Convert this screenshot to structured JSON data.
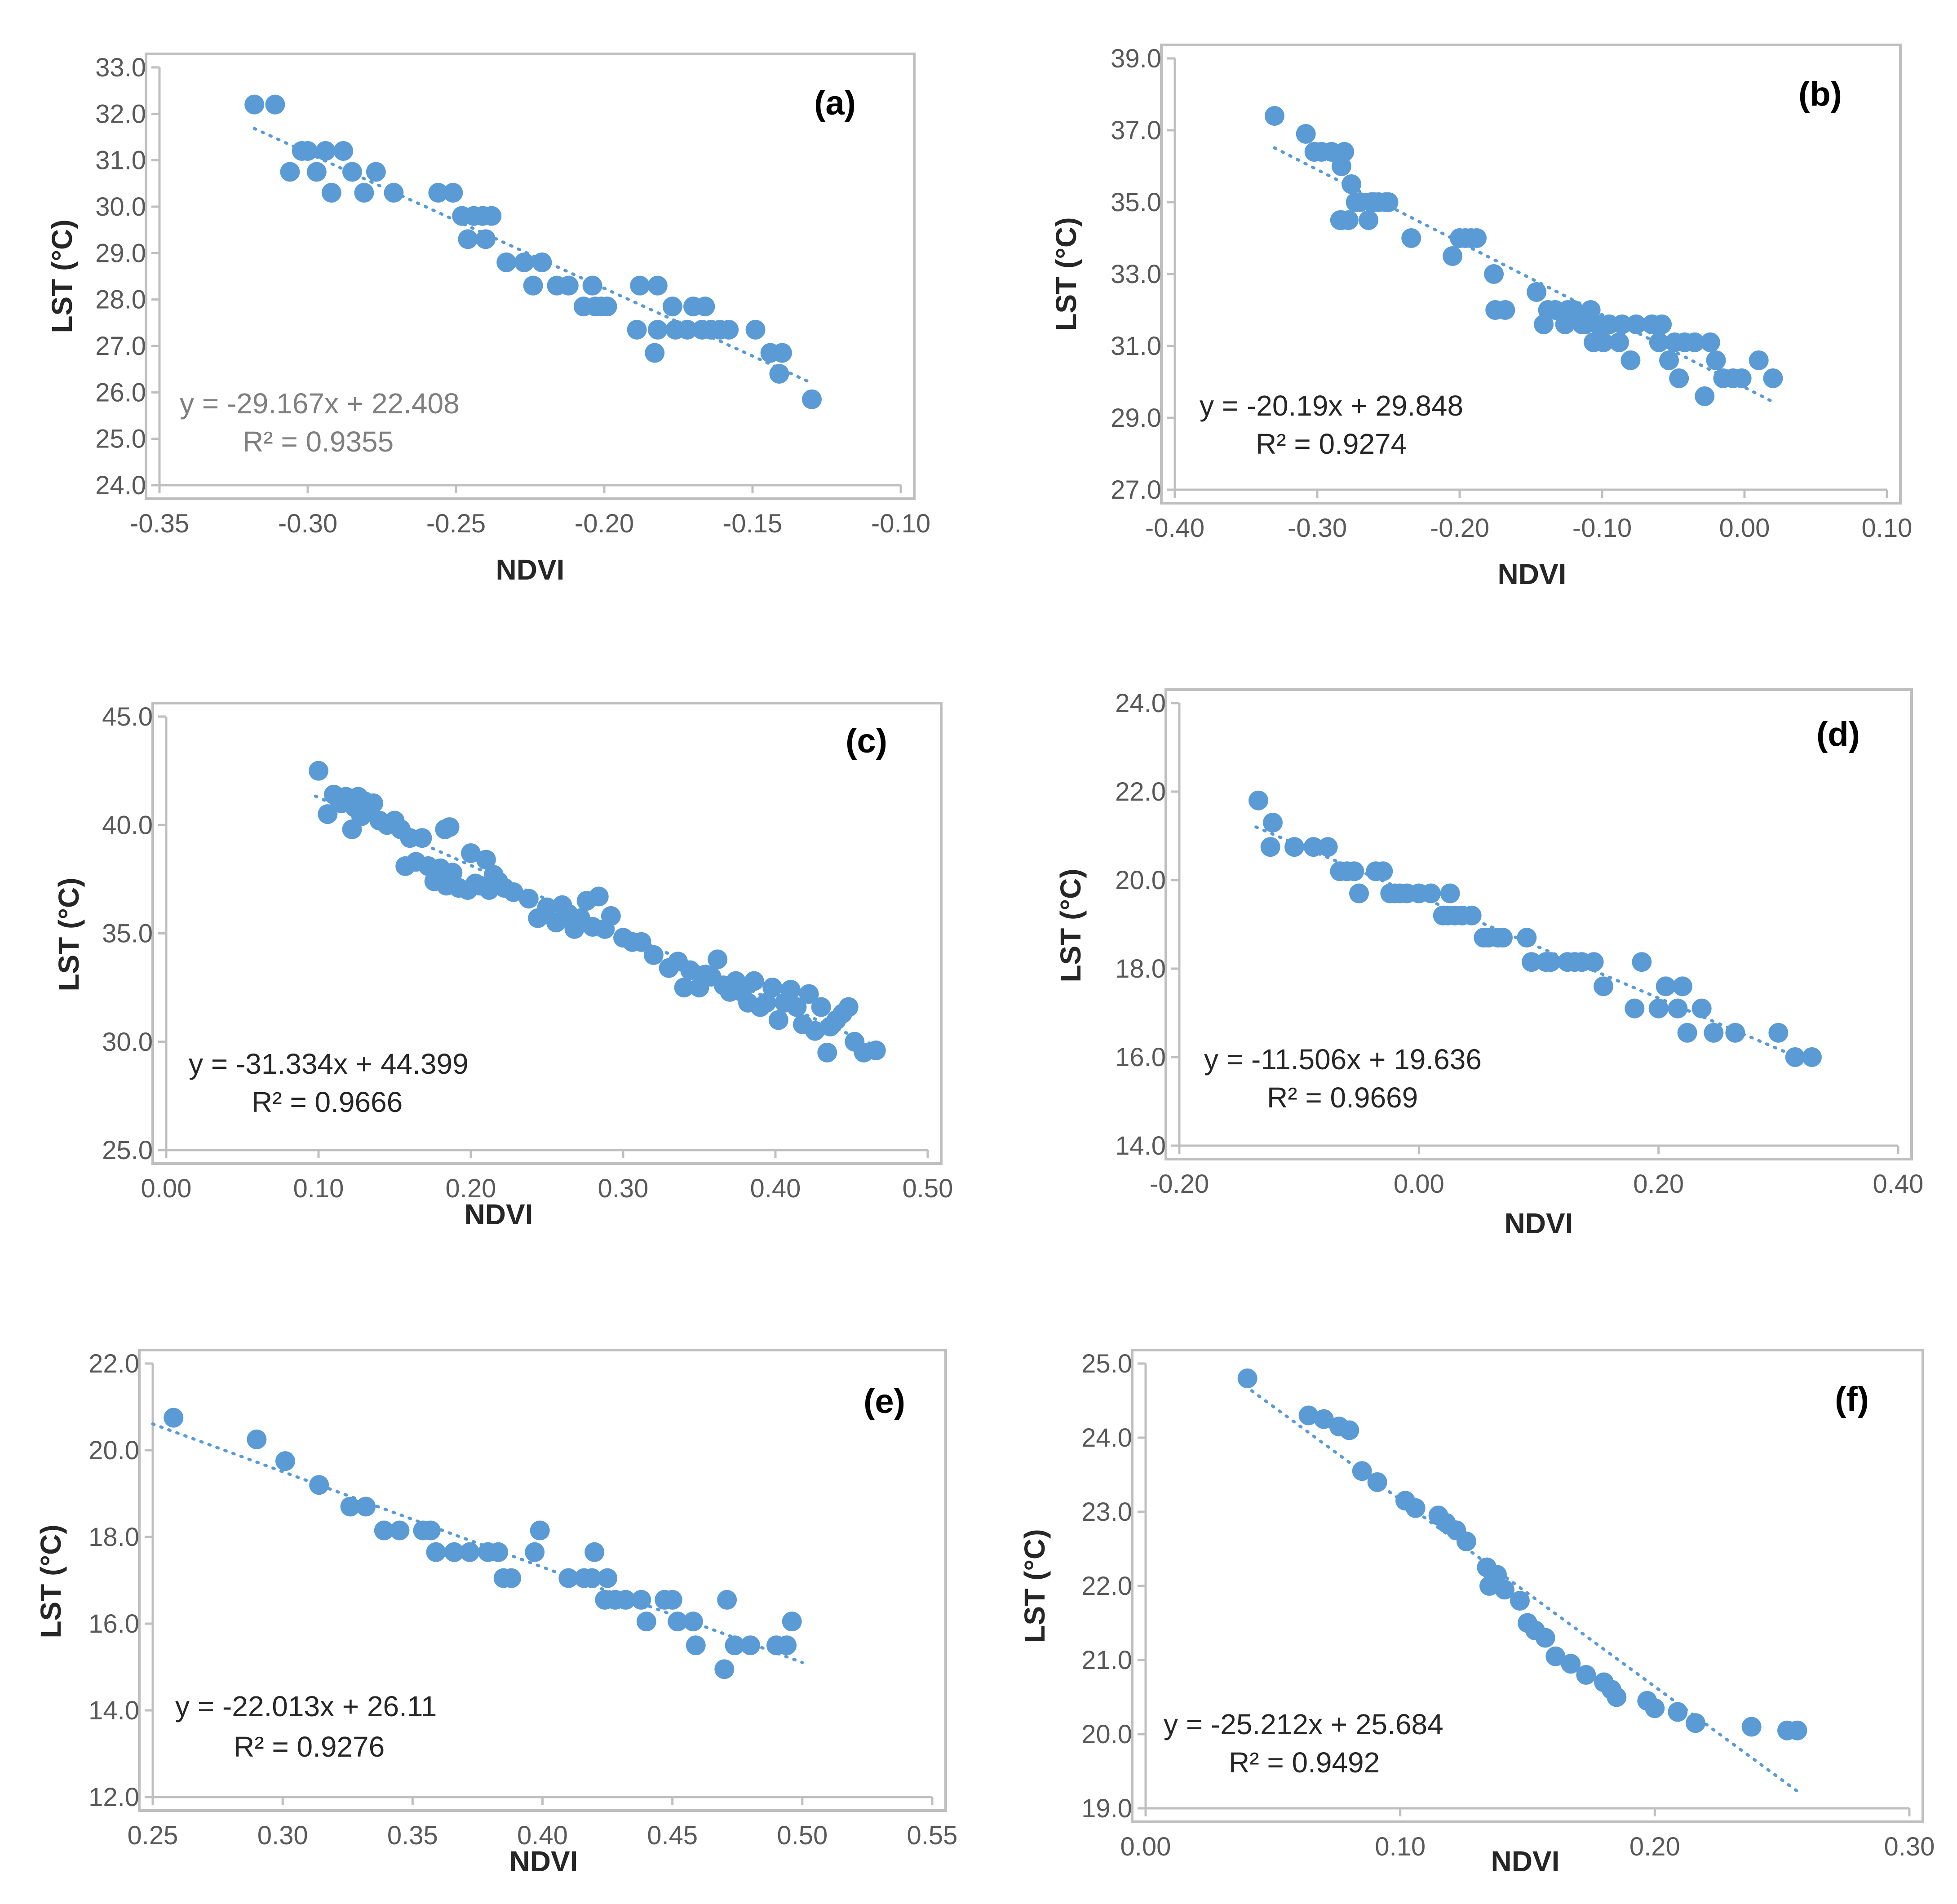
{
  "colors": {
    "marker": "#5b9bd5",
    "trendline": "#5b9bd5",
    "frame": "#bfbfbf",
    "text": "#262626",
    "tick": "#595959"
  },
  "chart_data": [
    {
      "id": "a",
      "type": "scatter",
      "panel_label": "(a)",
      "xlabel": "NDVI",
      "ylabel": "LST (°C)",
      "xlim": [
        -0.35,
        -0.1
      ],
      "ylim": [
        24.0,
        33.0
      ],
      "x_ticks": [
        "-0.35",
        "-0.30",
        "-0.25",
        "-0.20",
        "-0.15",
        "-0.10"
      ],
      "y_ticks": [
        "24.0",
        "25.0",
        "26.0",
        "27.0",
        "28.0",
        "29.0",
        "30.0",
        "31.0",
        "32.0",
        "33.0"
      ],
      "equation": "y = -29.167x + 22.408",
      "r2": "R² = 0.9355",
      "trendline": {
        "slope": -29.167,
        "intercept": 22.408,
        "x_range": [
          -0.318,
          -0.13
        ]
      },
      "x": [
        -0.318,
        -0.311,
        -0.306,
        -0.302,
        -0.3,
        -0.297,
        -0.294,
        -0.292,
        -0.288,
        -0.285,
        -0.281,
        -0.277,
        -0.271,
        -0.256,
        -0.251,
        -0.248,
        -0.246,
        -0.244,
        -0.241,
        -0.24,
        -0.238,
        -0.233,
        -0.227,
        -0.224,
        -0.221,
        -0.216,
        -0.212,
        -0.207,
        -0.204,
        -0.203,
        -0.201,
        -0.199,
        -0.189,
        -0.188,
        -0.183,
        -0.182,
        -0.182,
        -0.177,
        -0.176,
        -0.172,
        -0.17,
        -0.167,
        -0.166,
        -0.164,
        -0.161,
        -0.158,
        -0.149,
        -0.144,
        -0.141,
        -0.14,
        -0.13
      ],
      "y": [
        32.2,
        32.2,
        30.75,
        31.2,
        31.2,
        30.75,
        31.2,
        30.3,
        31.2,
        30.75,
        30.3,
        30.75,
        30.3,
        30.3,
        30.3,
        29.8,
        29.3,
        29.8,
        29.8,
        29.3,
        29.8,
        28.8,
        28.8,
        28.3,
        28.8,
        28.3,
        28.3,
        27.85,
        28.3,
        27.85,
        27.85,
        27.85,
        27.35,
        28.3,
        26.85,
        27.35,
        28.3,
        27.85,
        27.35,
        27.35,
        27.85,
        27.35,
        27.85,
        27.35,
        27.35,
        27.35,
        27.35,
        26.85,
        26.4,
        26.85,
        25.85
      ]
    },
    {
      "id": "b",
      "type": "scatter",
      "panel_label": "(b)",
      "xlabel": "NDVI",
      "ylabel": "LST (°C)",
      "xlim": [
        -0.4,
        0.1
      ],
      "ylim": [
        27.0,
        39.0
      ],
      "x_ticks": [
        "-0.40",
        "-0.30",
        "-0.20",
        "-0.10",
        "0.00",
        "0.10"
      ],
      "y_ticks": [
        "27.0",
        "29.0",
        "31.0",
        "33.0",
        "35.0",
        "37.0",
        "39.0"
      ],
      "equation": "y = -20.19x + 29.848",
      "r2": "R² = 0.9274",
      "trendline": {
        "slope": -20.19,
        "intercept": 29.848,
        "x_range": [
          -0.33,
          0.02
        ]
      },
      "x": [
        -0.33,
        -0.308,
        -0.302,
        -0.297,
        -0.29,
        -0.283,
        -0.284,
        -0.281,
        -0.283,
        -0.278,
        -0.276,
        -0.273,
        -0.27,
        -0.264,
        -0.262,
        -0.26,
        -0.257,
        -0.252,
        -0.25,
        -0.234,
        -0.205,
        -0.2,
        -0.196,
        -0.192,
        -0.188,
        -0.176,
        -0.175,
        -0.168,
        -0.146,
        -0.141,
        -0.138,
        -0.133,
        -0.126,
        -0.124,
        -0.12,
        -0.114,
        -0.112,
        -0.108,
        -0.106,
        -0.103,
        -0.099,
        -0.095,
        -0.088,
        -0.086,
        -0.08,
        -0.076,
        -0.065,
        -0.06,
        -0.058,
        -0.053,
        -0.049,
        -0.046,
        -0.042,
        -0.035,
        -0.028,
        -0.024,
        -0.02,
        -0.015,
        -0.008,
        -0.002,
        0.01,
        0.02
      ],
      "y": [
        37.4,
        36.9,
        36.4,
        36.4,
        36.4,
        36.0,
        34.5,
        36.4,
        34.5,
        34.5,
        35.5,
        35.0,
        35.0,
        34.5,
        35.0,
        35.0,
        35.0,
        35.0,
        35.0,
        34.0,
        33.5,
        34.0,
        34.0,
        34.0,
        34.0,
        33.0,
        32.0,
        32.0,
        32.5,
        31.6,
        32.0,
        32.0,
        31.6,
        32.0,
        32.0,
        31.6,
        31.6,
        32.0,
        31.1,
        31.6,
        31.1,
        31.6,
        31.1,
        31.6,
        30.6,
        31.6,
        31.6,
        31.1,
        31.6,
        30.6,
        31.1,
        30.1,
        31.1,
        31.1,
        29.6,
        31.1,
        30.6,
        30.1,
        30.1,
        30.1,
        30.6,
        30.1
      ]
    },
    {
      "id": "c",
      "type": "scatter",
      "panel_label": "(c)",
      "xlabel": "NDVI",
      "ylabel": "LST (°C)",
      "xlim": [
        0.0,
        0.5
      ],
      "ylim": [
        25.0,
        45.0
      ],
      "x_ticks": [
        "0.00",
        "0.10",
        "0.20",
        "0.30",
        "0.40",
        "0.50"
      ],
      "y_ticks": [
        "25.0",
        "30.0",
        "35.0",
        "40.0",
        "45.0"
      ],
      "equation": "y = -31.334x + 44.399",
      "r2": "R² = 0.9666",
      "trendline": {
        "slope": -31.334,
        "intercept": 44.399,
        "x_range": [
          0.098,
          0.47
        ]
      },
      "x": [
        0.1,
        0.106,
        0.11,
        0.115,
        0.118,
        0.122,
        0.124,
        0.126,
        0.128,
        0.13,
        0.132,
        0.136,
        0.14,
        0.145,
        0.15,
        0.154,
        0.157,
        0.16,
        0.164,
        0.168,
        0.172,
        0.176,
        0.18,
        0.183,
        0.184,
        0.186,
        0.188,
        0.192,
        0.198,
        0.2,
        0.203,
        0.206,
        0.21,
        0.212,
        0.215,
        0.218,
        0.222,
        0.228,
        0.238,
        0.244,
        0.25,
        0.256,
        0.26,
        0.264,
        0.268,
        0.272,
        0.276,
        0.28,
        0.284,
        0.288,
        0.292,
        0.3,
        0.306,
        0.312,
        0.32,
        0.33,
        0.336,
        0.34,
        0.344,
        0.35,
        0.354,
        0.358,
        0.362,
        0.366,
        0.37,
        0.374,
        0.378,
        0.382,
        0.386,
        0.39,
        0.394,
        0.398,
        0.402,
        0.406,
        0.41,
        0.414,
        0.418,
        0.422,
        0.426,
        0.43,
        0.434,
        0.436,
        0.44,
        0.444,
        0.448,
        0.452,
        0.458,
        0.466
      ],
      "y": [
        42.5,
        40.5,
        41.4,
        41.0,
        41.3,
        39.8,
        40.8,
        41.3,
        40.4,
        41.1,
        40.8,
        41.0,
        40.2,
        40.0,
        40.2,
        39.8,
        38.1,
        39.4,
        38.3,
        39.4,
        38.1,
        37.4,
        38.0,
        39.8,
        37.2,
        39.9,
        37.8,
        37.1,
        37.0,
        38.7,
        37.3,
        37.2,
        38.4,
        37.0,
        37.7,
        37.4,
        37.1,
        36.9,
        36.6,
        35.7,
        36.2,
        35.5,
        36.3,
        35.9,
        35.2,
        35.7,
        36.5,
        35.3,
        36.7,
        35.2,
        35.8,
        34.8,
        34.6,
        34.6,
        34.0,
        33.4,
        33.7,
        32.5,
        33.3,
        32.5,
        33.1,
        33.0,
        33.8,
        32.6,
        32.3,
        32.8,
        32.3,
        31.8,
        32.8,
        31.6,
        31.8,
        32.5,
        31.0,
        31.8,
        32.4,
        31.6,
        30.8,
        32.2,
        30.5,
        31.6,
        29.5,
        30.7,
        31.0,
        31.3,
        31.6,
        30.0,
        29.5,
        29.6
      ]
    },
    {
      "id": "d",
      "type": "scatter",
      "panel_label": "(d)",
      "xlabel": "NDVI",
      "ylabel": "LST (°C)",
      "xlim": [
        -0.2,
        0.4
      ],
      "ylim": [
        14.0,
        24.0
      ],
      "x_ticks": [
        "-0.20",
        "0.00",
        "0.20",
        "0.40"
      ],
      "y_ticks": [
        "14.0",
        "16.0",
        "18.0",
        "20.0",
        "22.0",
        "24.0"
      ],
      "equation": "y = -11.506x + 19.636",
      "r2": "R² = 0.9669",
      "trendline": {
        "slope": -11.506,
        "intercept": 19.636,
        "x_range": [
          -0.136,
          0.33
        ]
      },
      "x": [
        -0.134,
        -0.122,
        -0.124,
        -0.104,
        -0.088,
        -0.076,
        -0.066,
        -0.06,
        -0.054,
        -0.05,
        -0.036,
        -0.03,
        -0.024,
        -0.02,
        -0.016,
        -0.01,
        0.0,
        0.01,
        0.02,
        0.024,
        0.026,
        0.03,
        0.036,
        0.044,
        0.054,
        0.058,
        0.066,
        0.07,
        0.09,
        0.094,
        0.106,
        0.11,
        0.124,
        0.13,
        0.136,
        0.146,
        0.154,
        0.18,
        0.186,
        0.2,
        0.206,
        0.216,
        0.22,
        0.224,
        0.236,
        0.246,
        0.264,
        0.3,
        0.314,
        0.328
      ],
      "y": [
        21.8,
        21.3,
        20.75,
        20.75,
        20.75,
        20.75,
        20.2,
        20.2,
        20.2,
        19.7,
        20.2,
        20.2,
        19.7,
        19.7,
        19.7,
        19.7,
        19.7,
        19.7,
        19.2,
        19.2,
        19.7,
        19.2,
        19.2,
        19.2,
        18.7,
        18.7,
        18.7,
        18.7,
        18.7,
        18.15,
        18.15,
        18.15,
        18.15,
        18.15,
        18.15,
        18.15,
        17.6,
        17.1,
        18.15,
        17.1,
        17.6,
        17.1,
        17.6,
        16.55,
        17.1,
        16.55,
        16.55,
        16.55,
        16.0,
        16.0
      ]
    },
    {
      "id": "e",
      "type": "scatter",
      "panel_label": "(e)",
      "xlabel": "NDVI",
      "ylabel": "LST (°C)",
      "xlim": [
        0.25,
        0.55
      ],
      "ylim": [
        12.0,
        22.0
      ],
      "x_ticks": [
        "0.25",
        "0.30",
        "0.35",
        "0.40",
        "0.45",
        "0.50",
        "0.55"
      ],
      "y_ticks": [
        "12.0",
        "14.0",
        "16.0",
        "18.0",
        "20.0",
        "22.0"
      ],
      "equation": "y = -22.013x + 26.11",
      "r2": "R² = 0.9276",
      "trendline": {
        "slope": -22.013,
        "intercept": 26.11,
        "x_range": [
          0.25,
          0.5
        ]
      },
      "x": [
        0.258,
        0.29,
        0.301,
        0.314,
        0.326,
        0.332,
        0.339,
        0.345,
        0.354,
        0.357,
        0.359,
        0.366,
        0.372,
        0.379,
        0.383,
        0.385,
        0.388,
        0.397,
        0.399,
        0.41,
        0.416,
        0.419,
        0.42,
        0.424,
        0.425,
        0.428,
        0.432,
        0.438,
        0.44,
        0.447,
        0.45,
        0.452,
        0.458,
        0.459,
        0.47,
        0.471,
        0.474,
        0.48,
        0.49,
        0.494,
        0.496
      ],
      "y": [
        20.75,
        20.25,
        19.75,
        19.2,
        18.7,
        18.7,
        18.15,
        18.15,
        18.15,
        18.15,
        17.65,
        17.65,
        17.65,
        17.65,
        17.65,
        17.05,
        17.05,
        17.65,
        18.15,
        17.05,
        17.05,
        17.05,
        17.65,
        16.55,
        17.05,
        16.55,
        16.55,
        16.55,
        16.05,
        16.55,
        16.55,
        16.05,
        16.05,
        15.5,
        14.95,
        16.55,
        15.5,
        15.5,
        15.5,
        15.5,
        16.05
      ]
    },
    {
      "id": "f",
      "type": "scatter",
      "panel_label": "(f)",
      "xlabel": "NDVI",
      "ylabel": "LST (°C)",
      "xlim": [
        0.0,
        0.3
      ],
      "ylim": [
        19.0,
        25.0
      ],
      "x_ticks": [
        "0.00",
        "0.10",
        "0.20",
        "0.30"
      ],
      "y_ticks": [
        "19.0",
        "20.0",
        "21.0",
        "22.0",
        "23.0",
        "24.0",
        "25.0"
      ],
      "equation": "y = -25.212x + 25.684",
      "r2": "R² = 0.9492",
      "trendline": {
        "slope": -25.212,
        "intercept": 25.684,
        "x_range": [
          0.039,
          0.256
        ]
      },
      "x": [
        0.04,
        0.064,
        0.07,
        0.076,
        0.08,
        0.085,
        0.091,
        0.102,
        0.106,
        0.115,
        0.118,
        0.122,
        0.126,
        0.134,
        0.135,
        0.138,
        0.141,
        0.147,
        0.15,
        0.153,
        0.157,
        0.161,
        0.167,
        0.173,
        0.18,
        0.183,
        0.185,
        0.197,
        0.2,
        0.209,
        0.216,
        0.238,
        0.252,
        0.256
      ],
      "y": [
        24.8,
        24.3,
        24.25,
        24.15,
        24.1,
        23.55,
        23.4,
        23.15,
        23.05,
        22.95,
        22.85,
        22.75,
        22.6,
        22.25,
        22.0,
        22.15,
        21.95,
        21.8,
        21.5,
        21.4,
        21.3,
        21.05,
        20.95,
        20.8,
        20.7,
        20.6,
        20.5,
        20.45,
        20.35,
        20.3,
        20.15,
        20.1,
        20.05,
        20.05
      ]
    }
  ]
}
